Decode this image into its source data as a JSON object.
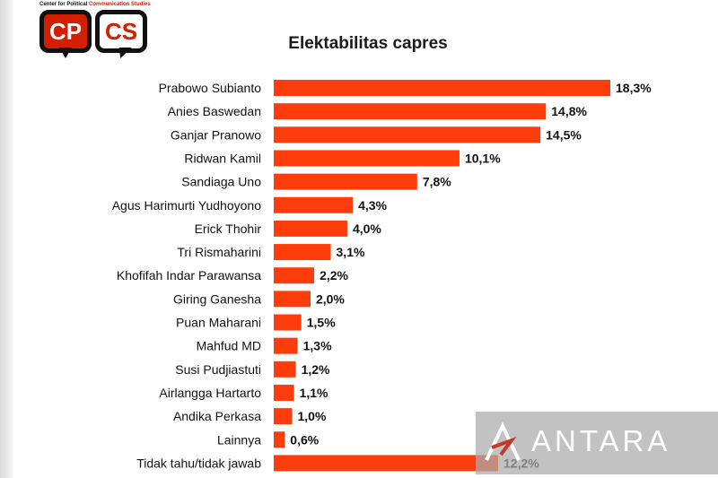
{
  "logo": {
    "caption_black": "Center for Political",
    "caption_red": "Communication Studies",
    "left_letters": "CP",
    "right_letters": "CS"
  },
  "watermark": {
    "text": "ANTARA"
  },
  "colors": {
    "bar": "#ff3d0c",
    "text": "#111111",
    "brand_red": "#d41e00"
  },
  "chart_data": {
    "type": "bar",
    "orientation": "horizontal",
    "title": "Elektabilitas capres",
    "categories": [
      "Prabowo Subianto",
      "Anies Baswedan",
      "Ganjar Pranowo",
      "Ridwan Kamil",
      "Sandiaga Uno",
      "Agus Harimurti Yudhoyono",
      "Erick Thohir",
      "Tri Rismaharini",
      "Khofifah Indar Parawansa",
      "Giring Ganesha",
      "Puan Maharani",
      "Mahfud MD",
      "Susi Pudjiastuti",
      "Airlangga Hartarto",
      "Andika Perkasa",
      "Lainnya",
      "Tidak tahu/tidak jawab"
    ],
    "values": [
      18.3,
      14.8,
      14.5,
      10.1,
      7.8,
      4.3,
      4.0,
      3.1,
      2.2,
      2.0,
      1.5,
      1.3,
      1.2,
      1.1,
      1.0,
      0.6,
      12.2
    ],
    "value_labels": [
      "18,3%",
      "14,8%",
      "14,5%",
      "10,1%",
      "7,8%",
      "4,3%",
      "4,0%",
      "3,1%",
      "2,2%",
      "2,0%",
      "1,5%",
      "1,3%",
      "1,2%",
      "1,1%",
      "1,0%",
      "0,6%",
      "12,2%"
    ],
    "xlim": [
      0,
      18.3
    ],
    "grid": false,
    "legend": "none"
  }
}
